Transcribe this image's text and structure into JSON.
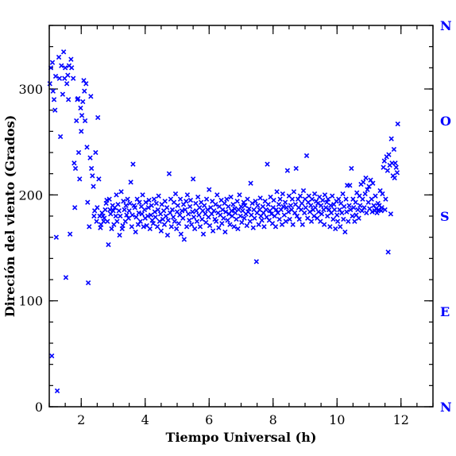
{
  "chart_data": {
    "type": "scatter",
    "title": "",
    "xlabel": "Tiempo Universal (h)",
    "ylabel": "Direción del viento (Grados)",
    "xlim": [
      1,
      13
    ],
    "ylim": [
      0,
      360
    ],
    "x_ticks": [
      2,
      4,
      6,
      8,
      10,
      12
    ],
    "y_ticks": [
      0,
      100,
      200,
      300
    ],
    "x_minor_step": 0.5,
    "y_minor_step": 20,
    "grid": false,
    "legend": "none",
    "marker": "x",
    "point_color": "#0000ff",
    "compass_labels": [
      {
        "label": "N",
        "value": 360
      },
      {
        "label": "O",
        "value": 270
      },
      {
        "label": "S",
        "value": 180
      },
      {
        "label": "E",
        "value": 90
      },
      {
        "label": "N",
        "value": 0
      }
    ],
    "points": [
      [
        1.02,
        305
      ],
      [
        1.05,
        320
      ],
      [
        1.08,
        48
      ],
      [
        1.1,
        325
      ],
      [
        1.12,
        298
      ],
      [
        1.15,
        290
      ],
      [
        1.18,
        280
      ],
      [
        1.2,
        312
      ],
      [
        1.22,
        160
      ],
      [
        1.25,
        15
      ],
      [
        1.3,
        330
      ],
      [
        1.32,
        310
      ],
      [
        1.35,
        255
      ],
      [
        1.38,
        322
      ],
      [
        1.42,
        295
      ],
      [
        1.45,
        335
      ],
      [
        1.48,
        310
      ],
      [
        1.5,
        320
      ],
      [
        1.52,
        122
      ],
      [
        1.55,
        305
      ],
      [
        1.58,
        313
      ],
      [
        1.6,
        290
      ],
      [
        1.62,
        322
      ],
      [
        1.65,
        163
      ],
      [
        1.68,
        328
      ],
      [
        1.7,
        320
      ],
      [
        1.75,
        310
      ],
      [
        1.78,
        230
      ],
      [
        1.8,
        188
      ],
      [
        1.82,
        225
      ],
      [
        1.85,
        270
      ],
      [
        1.88,
        290
      ],
      [
        1.9,
        291
      ],
      [
        1.92,
        240
      ],
      [
        1.95,
        215
      ],
      [
        1.98,
        282
      ],
      [
        2.0,
        260
      ],
      [
        2.02,
        275
      ],
      [
        2.05,
        288
      ],
      [
        2.08,
        308
      ],
      [
        2.1,
        298
      ],
      [
        2.12,
        270
      ],
      [
        2.15,
        305
      ],
      [
        2.18,
        245
      ],
      [
        2.2,
        193
      ],
      [
        2.22,
        117
      ],
      [
        2.25,
        170
      ],
      [
        2.28,
        235
      ],
      [
        2.3,
        293
      ],
      [
        2.32,
        225
      ],
      [
        2.35,
        218
      ],
      [
        2.38,
        208
      ],
      [
        2.4,
        180
      ],
      [
        2.42,
        185
      ],
      [
        2.45,
        240
      ],
      [
        2.48,
        175
      ],
      [
        2.5,
        188
      ],
      [
        2.52,
        273
      ],
      [
        2.55,
        215
      ],
      [
        2.58,
        180
      ],
      [
        2.6,
        169
      ],
      [
        2.62,
        172
      ],
      [
        2.65,
        183
      ],
      [
        2.68,
        180
      ],
      [
        2.7,
        175
      ],
      [
        2.72,
        178
      ],
      [
        2.75,
        186
      ],
      [
        2.78,
        192
      ],
      [
        2.8,
        195
      ],
      [
        2.82,
        175
      ],
      [
        2.85,
        153
      ],
      [
        2.88,
        196
      ],
      [
        2.9,
        186
      ],
      [
        2.92,
        182
      ],
      [
        2.95,
        168
      ],
      [
        2.98,
        190
      ],
      [
        3.0,
        185
      ],
      [
        3.02,
        172
      ],
      [
        3.05,
        188
      ],
      [
        3.08,
        180
      ],
      [
        3.1,
        200
      ],
      [
        3.12,
        175
      ],
      [
        3.15,
        191
      ],
      [
        3.18,
        185
      ],
      [
        3.2,
        162
      ],
      [
        3.22,
        180
      ],
      [
        3.25,
        203
      ],
      [
        3.28,
        168
      ],
      [
        3.3,
        171
      ],
      [
        3.32,
        194
      ],
      [
        3.35,
        186
      ],
      [
        3.38,
        175
      ],
      [
        3.4,
        190
      ],
      [
        3.42,
        181
      ],
      [
        3.45,
        196
      ],
      [
        3.48,
        178
      ],
      [
        3.5,
        185
      ],
      [
        3.52,
        192
      ],
      [
        3.55,
        212
      ],
      [
        3.58,
        170
      ],
      [
        3.6,
        181
      ],
      [
        3.62,
        229
      ],
      [
        3.65,
        190
      ],
      [
        3.68,
        188
      ],
      [
        3.7,
        165
      ],
      [
        3.72,
        179
      ],
      [
        3.75,
        196
      ],
      [
        3.78,
        172
      ],
      [
        3.8,
        183
      ],
      [
        3.82,
        193
      ],
      [
        3.85,
        175
      ],
      [
        3.88,
        189
      ],
      [
        3.9,
        182
      ],
      [
        3.92,
        200
      ],
      [
        3.95,
        170
      ],
      [
        3.98,
        186
      ],
      [
        4.0,
        178
      ],
      [
        4.02,
        193
      ],
      [
        4.05,
        171
      ],
      [
        4.08,
        180
      ],
      [
        4.1,
        188
      ],
      [
        4.12,
        195
      ],
      [
        4.15,
        168
      ],
      [
        4.18,
        181
      ],
      [
        4.2,
        190
      ],
      [
        4.22,
        176
      ],
      [
        4.25,
        173
      ],
      [
        4.28,
        196
      ],
      [
        4.3,
        184
      ],
      [
        4.32,
        179
      ],
      [
        4.35,
        192
      ],
      [
        4.38,
        170
      ],
      [
        4.4,
        186
      ],
      [
        4.42,
        199
      ],
      [
        4.45,
        175
      ],
      [
        4.48,
        182
      ],
      [
        4.5,
        166
      ],
      [
        4.52,
        191
      ],
      [
        4.55,
        177
      ],
      [
        4.58,
        185
      ],
      [
        4.6,
        172
      ],
      [
        4.62,
        194
      ],
      [
        4.65,
        180
      ],
      [
        4.68,
        188
      ],
      [
        4.7,
        162
      ],
      [
        4.72,
        176
      ],
      [
        4.75,
        220
      ],
      [
        4.78,
        183
      ],
      [
        4.8,
        196
      ],
      [
        4.82,
        170
      ],
      [
        4.85,
        186
      ],
      [
        4.88,
        179
      ],
      [
        4.9,
        193
      ],
      [
        4.92,
        175
      ],
      [
        4.95,
        201
      ],
      [
        4.98,
        168
      ],
      [
        5.0,
        184
      ],
      [
        5.02,
        190
      ],
      [
        5.05,
        173
      ],
      [
        5.08,
        181
      ],
      [
        5.1,
        196
      ],
      [
        5.12,
        163
      ],
      [
        5.15,
        185
      ],
      [
        5.18,
        178
      ],
      [
        5.2,
        191
      ],
      [
        5.22,
        158
      ],
      [
        5.25,
        186
      ],
      [
        5.28,
        194
      ],
      [
        5.3,
        170
      ],
      [
        5.32,
        200
      ],
      [
        5.35,
        182
      ],
      [
        5.38,
        176
      ],
      [
        5.4,
        189
      ],
      [
        5.42,
        195
      ],
      [
        5.45,
        172
      ],
      [
        5.48,
        184
      ],
      [
        5.5,
        215
      ],
      [
        5.52,
        179
      ],
      [
        5.55,
        168
      ],
      [
        5.58,
        192
      ],
      [
        5.6,
        185
      ],
      [
        5.62,
        175
      ],
      [
        5.65,
        198
      ],
      [
        5.68,
        181
      ],
      [
        5.7,
        188
      ],
      [
        5.72,
        170
      ],
      [
        5.75,
        193
      ],
      [
        5.78,
        177
      ],
      [
        5.8,
        185
      ],
      [
        5.82,
        163
      ],
      [
        5.85,
        190
      ],
      [
        5.88,
        182
      ],
      [
        5.9,
        174
      ],
      [
        5.92,
        196
      ],
      [
        5.95,
        186
      ],
      [
        5.98,
        179
      ],
      [
        6.0,
        205
      ],
      [
        6.02,
        171
      ],
      [
        6.05,
        188
      ],
      [
        6.08,
        182
      ],
      [
        6.1,
        194
      ],
      [
        6.12,
        166
      ],
      [
        6.15,
        185
      ],
      [
        6.18,
        177
      ],
      [
        6.2,
        191
      ],
      [
        6.22,
        175
      ],
      [
        6.25,
        200
      ],
      [
        6.28,
        183
      ],
      [
        6.3,
        169
      ],
      [
        6.32,
        189
      ],
      [
        6.35,
        181
      ],
      [
        6.38,
        195
      ],
      [
        6.4,
        173
      ],
      [
        6.42,
        186
      ],
      [
        6.45,
        178
      ],
      [
        6.48,
        192
      ],
      [
        6.5,
        165
      ],
      [
        6.52,
        184
      ],
      [
        6.55,
        196
      ],
      [
        6.58,
        176
      ],
      [
        6.6,
        189
      ],
      [
        6.62,
        182
      ],
      [
        6.65,
        172
      ],
      [
        6.68,
        198
      ],
      [
        6.7,
        185
      ],
      [
        6.72,
        180
      ],
      [
        6.75,
        191
      ],
      [
        6.78,
        170
      ],
      [
        6.8,
        187
      ],
      [
        6.82,
        183
      ],
      [
        6.85,
        177
      ],
      [
        6.88,
        194
      ],
      [
        6.9,
        168
      ],
      [
        6.92,
        186
      ],
      [
        6.95,
        200
      ],
      [
        6.98,
        180
      ],
      [
        7.0,
        189
      ],
      [
        7.02,
        174
      ],
      [
        7.05,
        185
      ],
      [
        7.08,
        193
      ],
      [
        7.1,
        178
      ],
      [
        7.12,
        190
      ],
      [
        7.15,
        182
      ],
      [
        7.18,
        171
      ],
      [
        7.2,
        196
      ],
      [
        7.22,
        184
      ],
      [
        7.25,
        187
      ],
      [
        7.28,
        175
      ],
      [
        7.3,
        211
      ],
      [
        7.32,
        181
      ],
      [
        7.35,
        192
      ],
      [
        7.38,
        169
      ],
      [
        7.4,
        186
      ],
      [
        7.42,
        178
      ],
      [
        7.45,
        194
      ],
      [
        7.48,
        137
      ],
      [
        7.5,
        183
      ],
      [
        7.52,
        190
      ],
      [
        7.55,
        172
      ],
      [
        7.58,
        186
      ],
      [
        7.6,
        197
      ],
      [
        7.62,
        180
      ],
      [
        7.65,
        176
      ],
      [
        7.68,
        189
      ],
      [
        7.7,
        183
      ],
      [
        7.72,
        170
      ],
      [
        7.75,
        194
      ],
      [
        7.78,
        186
      ],
      [
        7.8,
        179
      ],
      [
        7.82,
        229
      ],
      [
        7.85,
        191
      ],
      [
        7.88,
        176
      ],
      [
        7.9,
        185
      ],
      [
        7.92,
        198
      ],
      [
        7.95,
        182
      ],
      [
        7.98,
        173
      ],
      [
        8.0,
        188
      ],
      [
        8.02,
        195
      ],
      [
        8.05,
        180
      ],
      [
        8.08,
        170
      ],
      [
        8.1,
        186
      ],
      [
        8.12,
        203
      ],
      [
        8.15,
        183
      ],
      [
        8.18,
        191
      ],
      [
        8.2,
        177
      ],
      [
        8.22,
        196
      ],
      [
        8.25,
        186
      ],
      [
        8.28,
        172
      ],
      [
        8.3,
        201
      ],
      [
        8.32,
        189
      ],
      [
        8.35,
        181
      ],
      [
        8.38,
        193
      ],
      [
        8.4,
        175
      ],
      [
        8.42,
        188
      ],
      [
        8.45,
        223
      ],
      [
        8.48,
        184
      ],
      [
        8.5,
        199
      ],
      [
        8.52,
        177
      ],
      [
        8.55,
        190
      ],
      [
        8.58,
        186
      ],
      [
        8.6,
        196
      ],
      [
        8.62,
        172
      ],
      [
        8.65,
        203
      ],
      [
        8.68,
        183
      ],
      [
        8.7,
        191
      ],
      [
        8.72,
        225
      ],
      [
        8.75,
        180
      ],
      [
        8.78,
        196
      ],
      [
        8.8,
        188
      ],
      [
        8.82,
        177
      ],
      [
        8.85,
        199
      ],
      [
        8.88,
        186
      ],
      [
        8.9,
        192
      ],
      [
        8.92,
        172
      ],
      [
        8.95,
        204
      ],
      [
        8.98,
        183
      ],
      [
        9.0,
        196
      ],
      [
        9.02,
        188
      ],
      [
        9.05,
        237
      ],
      [
        9.08,
        178
      ],
      [
        9.1,
        193
      ],
      [
        9.12,
        199
      ],
      [
        9.15,
        184
      ],
      [
        9.18,
        190
      ],
      [
        9.2,
        175
      ],
      [
        9.22,
        196
      ],
      [
        9.25,
        186
      ],
      [
        9.28,
        180
      ],
      [
        9.3,
        201
      ],
      [
        9.32,
        188
      ],
      [
        9.35,
        194
      ],
      [
        9.38,
        178
      ],
      [
        9.4,
        192
      ],
      [
        9.42,
        184
      ],
      [
        9.45,
        198
      ],
      [
        9.48,
        175
      ],
      [
        9.5,
        190
      ],
      [
        9.52,
        182
      ],
      [
        9.55,
        195
      ],
      [
        9.58,
        186
      ],
      [
        9.6,
        172
      ],
      [
        9.62,
        200
      ],
      [
        9.65,
        188
      ],
      [
        9.68,
        193
      ],
      [
        9.7,
        180
      ],
      [
        9.72,
        196
      ],
      [
        9.75,
        186
      ],
      [
        9.78,
        170
      ],
      [
        9.8,
        190
      ],
      [
        9.82,
        183
      ],
      [
        9.85,
        199
      ],
      [
        9.88,
        177
      ],
      [
        9.9,
        191
      ],
      [
        9.92,
        186
      ],
      [
        9.95,
        168
      ],
      [
        9.98,
        194
      ],
      [
        10.0,
        181
      ],
      [
        10.02,
        175
      ],
      [
        10.05,
        196
      ],
      [
        10.08,
        186
      ],
      [
        10.1,
        170
      ],
      [
        10.12,
        192
      ],
      [
        10.15,
        183
      ],
      [
        10.18,
        201
      ],
      [
        10.2,
        177
      ],
      [
        10.22,
        189
      ],
      [
        10.25,
        165
      ],
      [
        10.28,
        196
      ],
      [
        10.3,
        184
      ],
      [
        10.32,
        209
      ],
      [
        10.35,
        175
      ],
      [
        10.38,
        190
      ],
      [
        10.4,
        209
      ],
      [
        10.42,
        186
      ],
      [
        10.45,
        225
      ],
      [
        10.48,
        180
      ],
      [
        10.5,
        196
      ],
      [
        10.52,
        188
      ],
      [
        10.55,
        175
      ],
      [
        10.58,
        193
      ],
      [
        10.6,
        181
      ],
      [
        10.62,
        202
      ],
      [
        10.65,
        186
      ],
      [
        10.68,
        178
      ],
      [
        10.7,
        199
      ],
      [
        10.72,
        190
      ],
      [
        10.75,
        210
      ],
      [
        10.78,
        185
      ],
      [
        10.8,
        196
      ],
      [
        10.82,
        212
      ],
      [
        10.85,
        188
      ],
      [
        10.88,
        201
      ],
      [
        10.9,
        216
      ],
      [
        10.92,
        183
      ],
      [
        10.95,
        205
      ],
      [
        10.98,
        193
      ],
      [
        11.0,
        208
      ],
      [
        11.02,
        187
      ],
      [
        11.05,
        214
      ],
      [
        11.08,
        196
      ],
      [
        11.1,
        184
      ],
      [
        11.12,
        211
      ],
      [
        11.15,
        190
      ],
      [
        11.18,
        185
      ],
      [
        11.2,
        199
      ],
      [
        11.22,
        187
      ],
      [
        11.25,
        183
      ],
      [
        11.28,
        192
      ],
      [
        11.3,
        186
      ],
      [
        11.32,
        190
      ],
      [
        11.35,
        204
      ],
      [
        11.38,
        185
      ],
      [
        11.4,
        188
      ],
      [
        11.42,
        201
      ],
      [
        11.45,
        226
      ],
      [
        11.48,
        232
      ],
      [
        11.5,
        186
      ],
      [
        11.52,
        196
      ],
      [
        11.55,
        236
      ],
      [
        11.58,
        223
      ],
      [
        11.6,
        146
      ],
      [
        11.62,
        238
      ],
      [
        11.65,
        228
      ],
      [
        11.68,
        182
      ],
      [
        11.7,
        253
      ],
      [
        11.72,
        230
      ],
      [
        11.75,
        218
      ],
      [
        11.78,
        243
      ],
      [
        11.8,
        216
      ],
      [
        11.82,
        230
      ],
      [
        11.85,
        226
      ],
      [
        11.88,
        221
      ],
      [
        11.9,
        267
      ]
    ]
  }
}
